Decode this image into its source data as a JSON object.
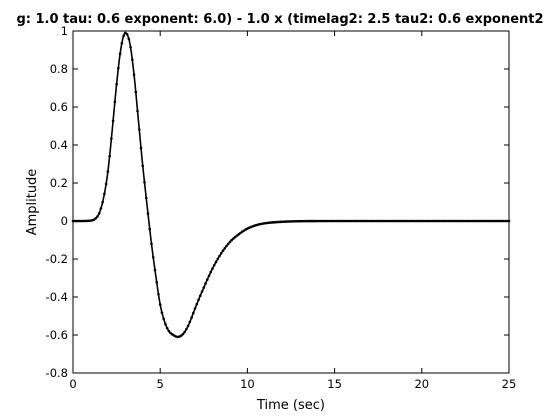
{
  "chart_data": {
    "type": "line",
    "title": "g: 1.0 tau: 0.6 exponent: 6.0) - 1.0 x (timelag2: 2.5 tau2: 0.6 exponent2",
    "xlabel": "Time (sec)",
    "ylabel": "Amplitude",
    "xlim": [
      0,
      25
    ],
    "ylim": [
      -0.8,
      1
    ],
    "xticks": [
      "0",
      "5",
      "10",
      "15",
      "20",
      "25"
    ],
    "yticks": [
      "-0.8",
      "-0.6",
      "-0.4",
      "-0.2",
      "0",
      "0.2",
      "0.4",
      "0.6",
      "0.8",
      "1"
    ],
    "grid": false,
    "x": [
      0,
      0.5,
      1,
      1.25,
      1.5,
      1.75,
      2,
      2.25,
      2.5,
      2.75,
      3,
      3.25,
      3.5,
      3.75,
      4,
      4.25,
      4.5,
      4.75,
      5,
      5.25,
      5.5,
      5.75,
      6,
      6.25,
      6.5,
      6.75,
      7,
      7.5,
      8,
      8.5,
      9,
      9.5,
      10,
      10.5,
      11,
      12,
      13,
      14,
      15,
      17,
      20,
      25
    ],
    "y": [
      0,
      0,
      0.002,
      0.01,
      0.04,
      0.12,
      0.26,
      0.48,
      0.72,
      0.91,
      0.99,
      0.94,
      0.77,
      0.53,
      0.29,
      0.08,
      -0.12,
      -0.29,
      -0.44,
      -0.53,
      -0.58,
      -0.6,
      -0.61,
      -0.6,
      -0.57,
      -0.52,
      -0.46,
      -0.35,
      -0.25,
      -0.17,
      -0.11,
      -0.07,
      -0.04,
      -0.022,
      -0.012,
      -0.004,
      -0.001,
      -0.0003,
      0,
      0,
      0,
      0
    ]
  }
}
